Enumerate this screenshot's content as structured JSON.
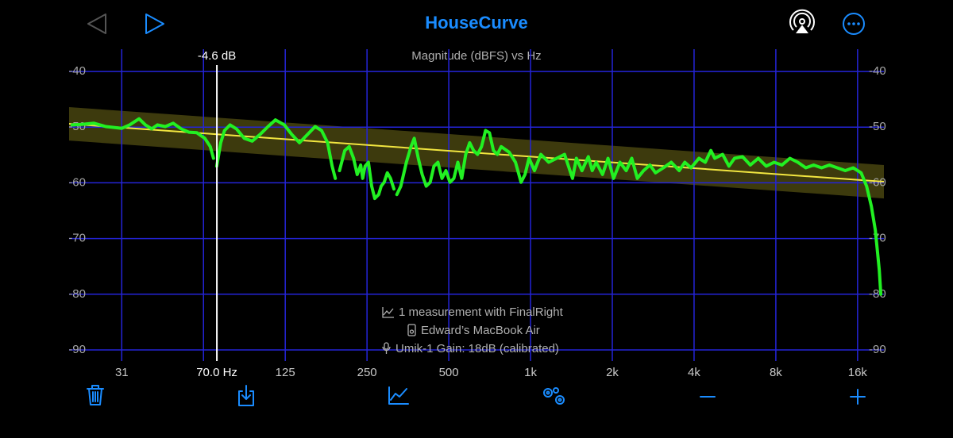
{
  "header": {
    "title": "HouseCurve"
  },
  "chart_data": {
    "type": "line",
    "title": "Magnitude (dBFS) vs Hz",
    "x_scale": "log",
    "xlim": [
      20,
      20000
    ],
    "ylim": [
      -92,
      -36
    ],
    "grid": true,
    "grid_color": "#2424d8",
    "xticks": [
      {
        "value": 31.25,
        "label": "31"
      },
      {
        "value": 62.5,
        "label": null
      },
      125,
      250,
      500,
      {
        "value": 1000,
        "label": "1k"
      },
      {
        "value": 2000,
        "label": "2k"
      },
      {
        "value": 4000,
        "label": "4k"
      },
      {
        "value": 8000,
        "label": "8k"
      },
      {
        "value": 16000,
        "label": "16k"
      }
    ],
    "yticks": [
      -40,
      -50,
      -60,
      -70,
      -80,
      -90
    ],
    "target": {
      "color": "#f2e640",
      "x": [
        20,
        20000
      ],
      "values": [
        -49.4,
        -59.8
      ]
    },
    "tolerance": 3,
    "band_color": "rgba(190, 180, 40, 0.32)",
    "cursor": {
      "x": 70,
      "label": "70.0 Hz",
      "value_label": "-4.6 dB"
    },
    "series": [
      {
        "color": "#22f022",
        "x": [
          20.5,
          22.3,
          24.7,
          27.3,
          31.3,
          33.4,
          36.2,
          38.2,
          40.3,
          42.3,
          45.2,
          48.3,
          51.7,
          55.2,
          59.1,
          63.2,
          66.2,
          68.0,
          69,
          69.9,
          72.3,
          74.7,
          78.3,
          82.6,
          88.3,
          94.5,
          101,
          108,
          115,
          124,
          132,
          141,
          151,
          161,
          170,
          179,
          186,
          191,
          195,
          198,
          207,
          215,
          223,
          230,
          237,
          241,
          246,
          253,
          260,
          267,
          276,
          282,
          289,
          297,
          305,
          314,
          318,
          322,
          333,
          349,
          363,
          373,
          386,
          399,
          413,
          427,
          441,
          456,
          472,
          488,
          505,
          522,
          540,
          558,
          577,
          597,
          617,
          638,
          660,
          683,
          706,
          730,
          755,
          780,
          834,
          880,
          923,
          954,
          987,
          1034,
          1091,
          1166,
          1248,
          1334,
          1379,
          1427,
          1475,
          1546,
          1632,
          1687,
          1745,
          1841,
          1929,
          2022,
          2133,
          2250,
          2358,
          2472,
          2608,
          2752,
          2884,
          3084,
          3297,
          3525,
          3697,
          3900,
          4169,
          4400,
          4613,
          4766,
          5097,
          5378,
          5638,
          6028,
          6447,
          6894,
          7372,
          7884,
          8428,
          9013,
          9641,
          10309,
          11022,
          11788,
          12606,
          13475,
          14409,
          15413,
          16481,
          17269,
          17978,
          18597,
          19231,
          19484
        ],
        "values": [
          -49.6,
          -49.5,
          -49.3,
          -49.9,
          -50.2,
          -49.6,
          -48.5,
          -49.6,
          -50.3,
          -49.6,
          -49.9,
          -49.3,
          -50.3,
          -50.9,
          -51.0,
          -52.0,
          -53.5,
          -55.6,
          null,
          -57.0,
          -52.8,
          -50.6,
          -49.6,
          -50.3,
          -52.0,
          -52.5,
          -51.3,
          -49.9,
          -48.7,
          -49.6,
          -51.3,
          -52.8,
          -51.3,
          -49.9,
          -50.6,
          -52.8,
          -57.0,
          -59.2,
          null,
          -57.8,
          -54.2,
          -53.5,
          -55.6,
          -58.5,
          -56.8,
          -59.2,
          -57.0,
          -56.3,
          -60.6,
          -62.8,
          -62.1,
          -60.6,
          -59.9,
          -58.2,
          -59.2,
          -61.1,
          null,
          -62.1,
          -60.6,
          -56.3,
          -53.5,
          -52.0,
          -55.6,
          -58.5,
          -60.6,
          -59.9,
          -57.0,
          -56.3,
          -59.2,
          -57.8,
          -59.9,
          -59.2,
          -56.3,
          -59.2,
          -54.9,
          -52.8,
          -54.2,
          -54.9,
          -53.5,
          -50.6,
          -51.0,
          -54.2,
          -54.9,
          -53.5,
          -54.5,
          -56.3,
          -59.9,
          -58.5,
          -55.6,
          -57.8,
          -54.9,
          -56.3,
          -55.6,
          -54.9,
          -57.0,
          -59.2,
          -55.6,
          -57.8,
          -55.3,
          -57.8,
          -56.3,
          -58.5,
          -55.6,
          -59.2,
          -56.3,
          -57.8,
          -55.6,
          -59.2,
          -57.8,
          -56.8,
          -58.2,
          -57.3,
          -56.3,
          -57.8,
          -56.3,
          -57.3,
          -55.6,
          -56.3,
          -54.2,
          -55.6,
          -54.9,
          -57.0,
          -55.6,
          -55.3,
          -56.8,
          -55.6,
          -57.0,
          -56.3,
          -56.8,
          -55.6,
          -56.3,
          -57.3,
          -56.8,
          -57.3,
          -56.8,
          -57.3,
          -57.8,
          -57.3,
          -58.2,
          -60.6,
          -64.2,
          -68.5,
          -75.7,
          -80.0
        ]
      }
    ]
  },
  "info": {
    "lines": [
      "1 measurement with FinalRight",
      "Edward’s MacBook Air",
      "Umik-1  Gain: 18dB (calibrated)"
    ]
  }
}
